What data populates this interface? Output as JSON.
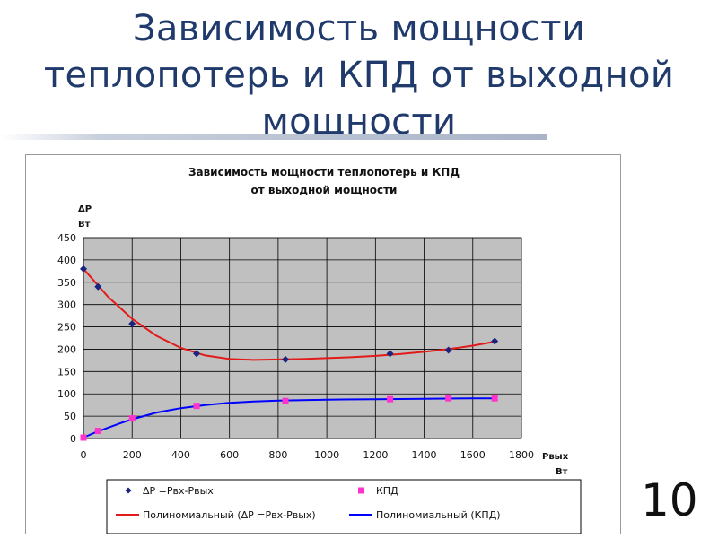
{
  "slide": {
    "title_lines": [
      "Зависимость мощности",
      "теплопотерь и КПД от выходной",
      "мощности"
    ],
    "slide_number": "10"
  },
  "colors": {
    "title": "#1f3a6b",
    "plot_bg": "#c0c0c0",
    "series_loss": "#1a237e",
    "series_eff": "#ff33cc",
    "trend_loss": "#e31a1a",
    "trend_eff": "#0000ff"
  },
  "chart_data": {
    "type": "scatter",
    "title_lines": [
      "Зависимость мощности теплопотерь и КПД",
      "от выходной мощности"
    ],
    "ylabel_lines": [
      "ΔР",
      "Вт"
    ],
    "xlabel_lines": [
      "Рвых",
      "Вт"
    ],
    "xlim": [
      0,
      1800
    ],
    "ylim": [
      0,
      450
    ],
    "x_ticks": [
      "0",
      "200",
      "400",
      "600",
      "800",
      "1000",
      "1200",
      "1400",
      "1600",
      "1800"
    ],
    "y_ticks": [
      "0",
      "50",
      "100",
      "150",
      "200",
      "250",
      "300",
      "350",
      "400",
      "450"
    ],
    "grid": true,
    "legend_position": "bottom",
    "series": [
      {
        "name": "ΔР =Рвх-Рвых",
        "marker": "diamond",
        "color": "#1a237e",
        "points": [
          [
            0,
            380
          ],
          [
            60,
            340
          ],
          [
            200,
            257
          ],
          [
            465,
            190
          ],
          [
            830,
            177
          ],
          [
            1260,
            190
          ],
          [
            1500,
            198
          ],
          [
            1690,
            218
          ]
        ]
      },
      {
        "name": "КПД",
        "marker": "square",
        "color": "#ff33cc",
        "points": [
          [
            0,
            2
          ],
          [
            60,
            17
          ],
          [
            200,
            45
          ],
          [
            465,
            73
          ],
          [
            830,
            84
          ],
          [
            1260,
            88
          ],
          [
            1500,
            90
          ],
          [
            1690,
            90
          ]
        ]
      }
    ],
    "trendlines": [
      {
        "name": "Полиномиальный (ΔР =Рвх-Рвых)",
        "color": "#e31a1a",
        "points": [
          [
            0,
            380
          ],
          [
            100,
            318
          ],
          [
            200,
            268
          ],
          [
            300,
            230
          ],
          [
            400,
            203
          ],
          [
            500,
            186
          ],
          [
            600,
            178
          ],
          [
            700,
            176
          ],
          [
            800,
            177
          ],
          [
            900,
            178
          ],
          [
            1000,
            180
          ],
          [
            1100,
            182
          ],
          [
            1200,
            185
          ],
          [
            1300,
            189
          ],
          [
            1400,
            194
          ],
          [
            1500,
            200
          ],
          [
            1600,
            208
          ],
          [
            1700,
            218
          ]
        ]
      },
      {
        "name": "Полиномиальный (КПД)",
        "color": "#0000ff",
        "points": [
          [
            0,
            2
          ],
          [
            50,
            14
          ],
          [
            100,
            24
          ],
          [
            150,
            34
          ],
          [
            200,
            43
          ],
          [
            300,
            58
          ],
          [
            400,
            68
          ],
          [
            500,
            75
          ],
          [
            600,
            80
          ],
          [
            700,
            83
          ],
          [
            800,
            85
          ],
          [
            900,
            86
          ],
          [
            1000,
            87
          ],
          [
            1200,
            88
          ],
          [
            1400,
            89
          ],
          [
            1600,
            90
          ],
          [
            1700,
            90
          ]
        ]
      }
    ]
  }
}
